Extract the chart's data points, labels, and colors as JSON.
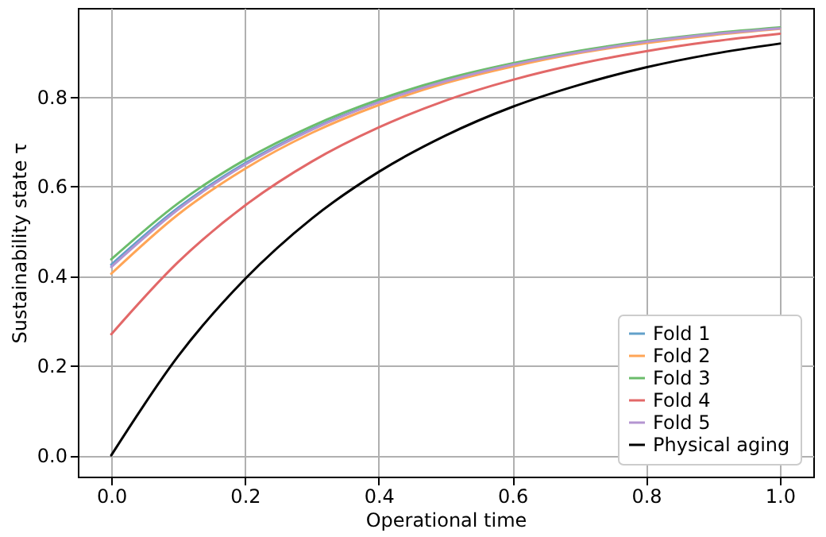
{
  "chart_data": {
    "type": "line",
    "xlabel": "Operational time",
    "ylabel": "Sustainability state τ",
    "x": [
      0,
      0.1,
      0.2,
      0.3,
      0.4,
      0.5,
      0.6,
      0.7,
      0.8,
      0.9,
      1.0
    ],
    "xlim": [
      -0.05,
      1.05
    ],
    "xticks": [
      {
        "value": 0,
        "label": "0.0"
      },
      0.2,
      0.4,
      0.6,
      0.8,
      {
        "value": 1,
        "label": "1.0"
      }
    ],
    "ylim": [
      -0.0475,
      0.9975
    ],
    "yticks": [
      {
        "value": 0,
        "label": "0.0"
      },
      0.2,
      0.4,
      0.6,
      0.8
    ],
    "grid": true,
    "legend": "bottom right",
    "marker": "none",
    "line_style": "solid",
    "series": [
      {
        "name": "Fold 1",
        "color": "#62a0ca",
        "values": [
          0.425,
          0.552,
          0.651,
          0.728,
          0.788,
          0.835,
          0.872,
          null,
          null,
          null,
          null
        ]
      },
      {
        "name": "Fold 2",
        "color": "#ffa556",
        "values": [
          0.405,
          0.537,
          0.639,
          0.719,
          0.781,
          0.83,
          0.867,
          0.897,
          0.919,
          0.937,
          0.951
        ]
      },
      {
        "name": "Fold 3",
        "color": "#6bbc6b",
        "values": [
          0.437,
          0.562,
          0.659,
          0.734,
          0.793,
          0.839,
          0.874,
          0.902,
          0.924,
          0.941,
          0.954
        ]
      },
      {
        "name": "Fold 4",
        "color": "#e26868",
        "values": [
          0.27,
          0.431,
          0.557,
          0.655,
          0.731,
          0.791,
          0.837,
          0.873,
          0.901,
          0.923,
          0.94
        ]
      },
      {
        "name": "Fold 5",
        "color": "#b495d1",
        "values": [
          0.42,
          0.548,
          0.648,
          0.726,
          0.787,
          0.834,
          0.871,
          0.899,
          0.922,
          0.939,
          0.952
        ]
      },
      {
        "name": "Physical aging",
        "color": "#000000",
        "values": [
          0,
          0.221,
          0.393,
          0.528,
          0.632,
          0.713,
          0.777,
          0.826,
          0.865,
          0.895,
          0.918
        ]
      }
    ]
  }
}
